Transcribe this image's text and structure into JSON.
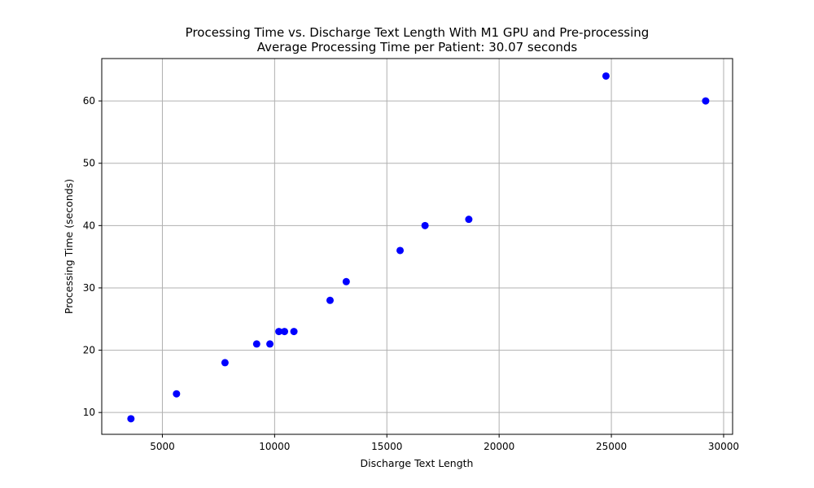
{
  "chart_data": {
    "type": "scatter",
    "title": "Processing Time vs. Discharge Text Length With M1 GPU and Pre-processing",
    "subtitle": "Average Processing Time per Patient: 30.07 seconds",
    "xlabel": "Discharge Text Length",
    "ylabel": "Processing Time (seconds)",
    "xlim": [
      2300,
      30400
    ],
    "ylim": [
      6.5,
      66.8
    ],
    "xticks": [
      5000,
      10000,
      15000,
      20000,
      25000,
      30000
    ],
    "yticks": [
      10,
      20,
      30,
      40,
      50,
      60
    ],
    "grid": true,
    "marker_color": "#0000ff",
    "points": [
      {
        "x": 3600,
        "y": 9
      },
      {
        "x": 5630,
        "y": 13
      },
      {
        "x": 7790,
        "y": 18
      },
      {
        "x": 9200,
        "y": 21
      },
      {
        "x": 9790,
        "y": 21
      },
      {
        "x": 10190,
        "y": 23
      },
      {
        "x": 10440,
        "y": 23
      },
      {
        "x": 10860,
        "y": 23
      },
      {
        "x": 12470,
        "y": 28
      },
      {
        "x": 13190,
        "y": 31
      },
      {
        "x": 15590,
        "y": 36
      },
      {
        "x": 16700,
        "y": 40
      },
      {
        "x": 18650,
        "y": 41
      },
      {
        "x": 24760,
        "y": 64
      },
      {
        "x": 29200,
        "y": 60
      }
    ]
  }
}
